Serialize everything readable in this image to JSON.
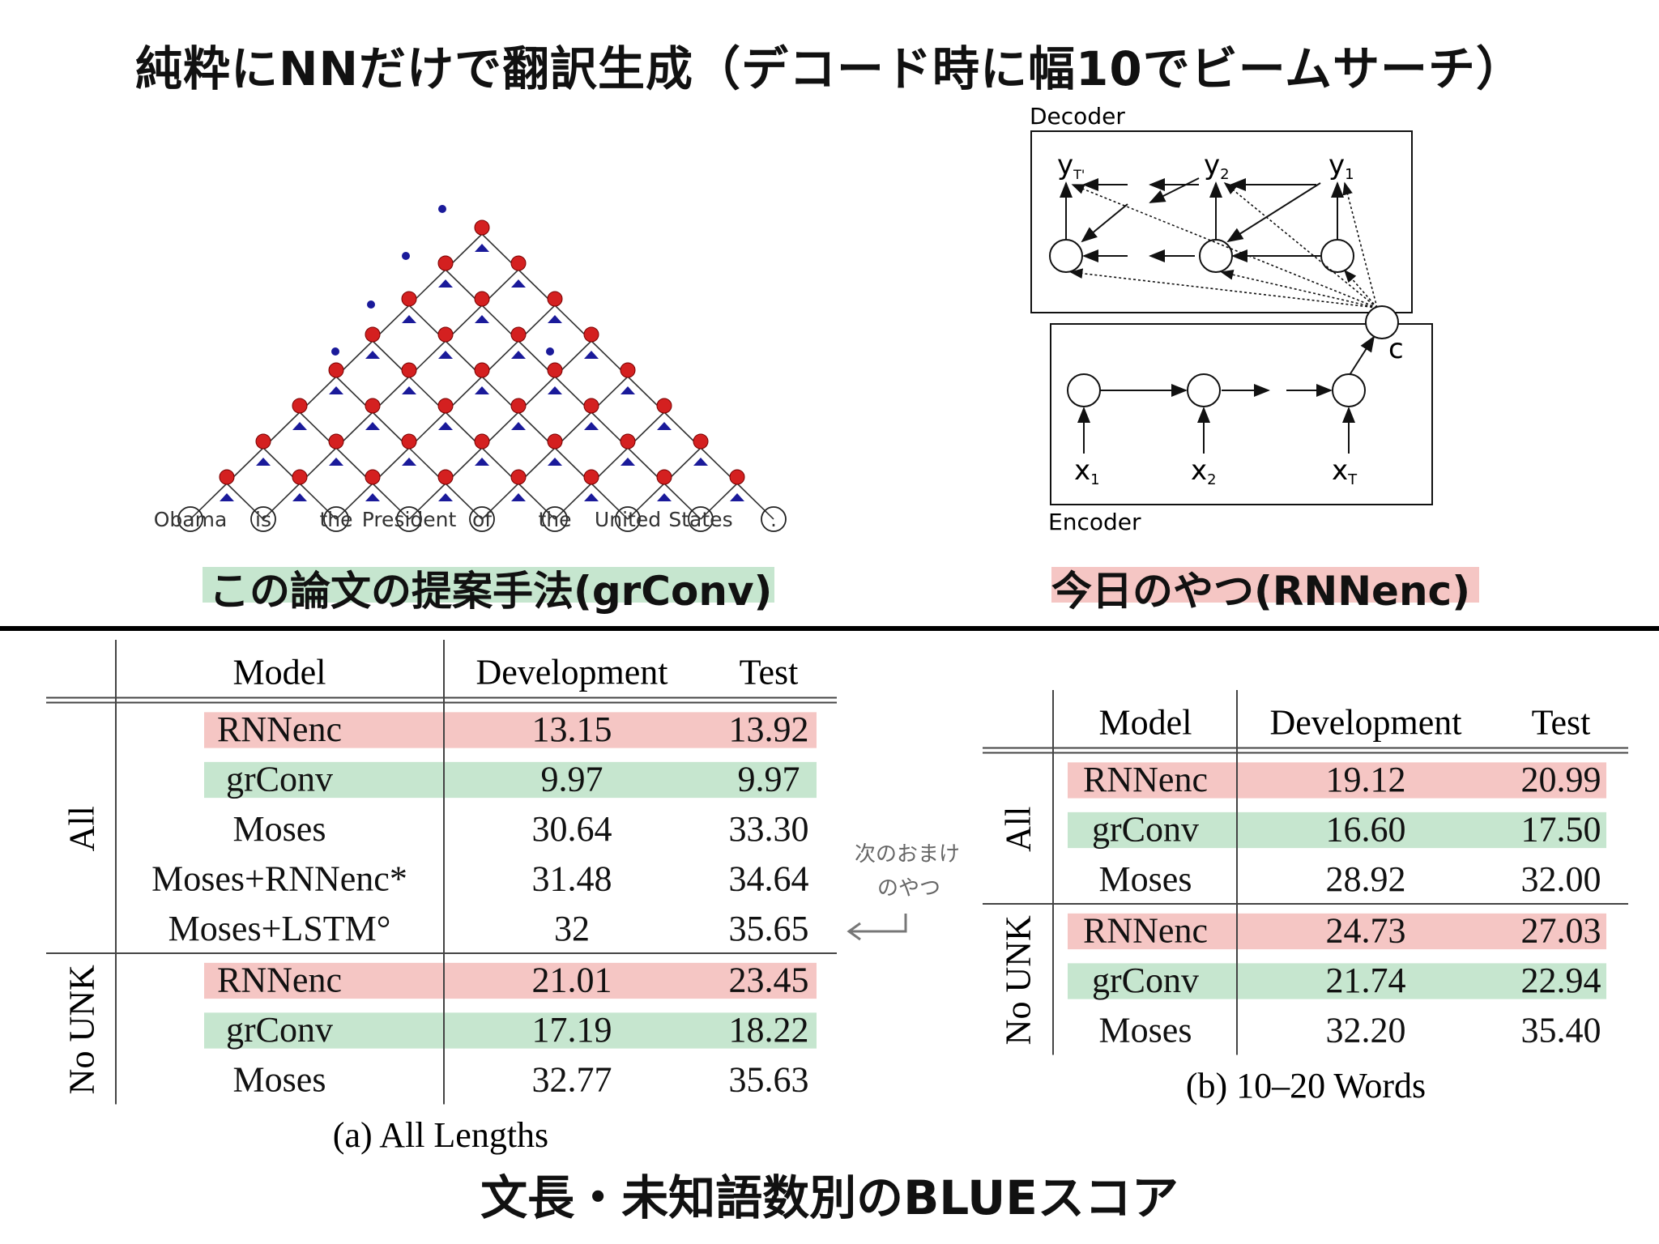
{
  "title": "純粋にNNだけで翻訳生成（デコード時に幅10でビームサーチ）",
  "captions": {
    "grconv": "この論文の提案手法(grConv)",
    "rnnenc": "今日のやつ(RNNenc)"
  },
  "bottom_title": "文長・未知語数別のBLUEスコア",
  "colors": {
    "red_highlight": "#f5c6c4",
    "green_highlight": "#c6e6cf",
    "node_red": "#d42020",
    "node_blue": "#1a1a9a"
  },
  "grconv_diagram": {
    "words": [
      "Obama",
      "is",
      "the",
      "President",
      "of",
      "the",
      "United",
      "States",
      "."
    ]
  },
  "rnnenc_diagram": {
    "decoder_label": "Decoder",
    "encoder_label": "Encoder",
    "y_labels": [
      "y",
      "y",
      "y"
    ],
    "y_subs": [
      "T'",
      "2",
      "1"
    ],
    "x_labels": [
      "x",
      "x",
      "x"
    ],
    "x_subs": [
      "1",
      "2",
      "T"
    ],
    "context_label": "c"
  },
  "note": {
    "line1": "次のおまけ",
    "line2": "のやつ"
  },
  "table_a": {
    "headers": [
      "Model",
      "Development",
      "Test"
    ],
    "groups": [
      {
        "label": "All",
        "rows": [
          {
            "model": "RNNenc",
            "dev": "13.15",
            "test": "13.92",
            "hl": "red"
          },
          {
            "model": "grConv",
            "dev": "9.97",
            "test": "9.97",
            "hl": "green"
          },
          {
            "model": "Moses",
            "dev": "30.64",
            "test": "33.30",
            "hl": ""
          },
          {
            "model": "Moses+RNNenc*",
            "dev": "31.48",
            "test": "34.64",
            "hl": ""
          },
          {
            "model": "Moses+LSTM°",
            "dev": "32",
            "test": "35.65",
            "hl": ""
          }
        ]
      },
      {
        "label": "No UNK",
        "rows": [
          {
            "model": "RNNenc",
            "dev": "21.01",
            "test": "23.45",
            "hl": "red"
          },
          {
            "model": "grConv",
            "dev": "17.19",
            "test": "18.22",
            "hl": "green"
          },
          {
            "model": "Moses",
            "dev": "32.77",
            "test": "35.63",
            "hl": ""
          }
        ]
      }
    ],
    "caption": "(a) All Lengths"
  },
  "table_b": {
    "headers": [
      "Model",
      "Development",
      "Test"
    ],
    "groups": [
      {
        "label": "All",
        "rows": [
          {
            "model": "RNNenc",
            "dev": "19.12",
            "test": "20.99",
            "hl": "red"
          },
          {
            "model": "grConv",
            "dev": "16.60",
            "test": "17.50",
            "hl": "green"
          },
          {
            "model": "Moses",
            "dev": "28.92",
            "test": "32.00",
            "hl": ""
          }
        ]
      },
      {
        "label": "No UNK",
        "rows": [
          {
            "model": "RNNenc",
            "dev": "24.73",
            "test": "27.03",
            "hl": "red"
          },
          {
            "model": "grConv",
            "dev": "21.74",
            "test": "22.94",
            "hl": "green"
          },
          {
            "model": "Moses",
            "dev": "32.20",
            "test": "35.40",
            "hl": ""
          }
        ]
      }
    ],
    "caption": "(b) 10–20 Words"
  }
}
